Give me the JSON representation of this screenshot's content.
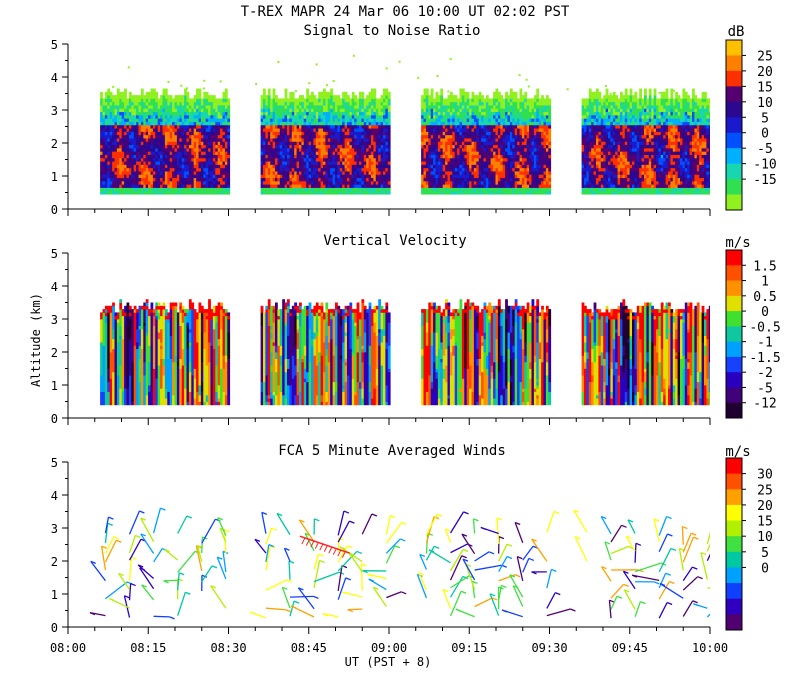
{
  "figure": {
    "title": "T-REX   MAPR 24 Mar 06   10:00 UT   02:02   PST",
    "xlabel": "UT  (PST + 8)",
    "ylabel": "Altitude (km)"
  },
  "chart_data": [
    {
      "type": "heatmap",
      "title": "Signal to Noise Ratio",
      "units": "dB",
      "x_ticks": [
        "08:00",
        "08:15",
        "08:30",
        "08:45",
        "09:00",
        "09:15",
        "09:30",
        "09:45",
        "10:00"
      ],
      "xlim": [
        "08:00",
        "10:00"
      ],
      "y_ticks": [
        0,
        1,
        2,
        3,
        4,
        5
      ],
      "ylim": [
        0,
        5
      ],
      "data_gaps": [
        [
          "08:30",
          "08:34"
        ],
        [
          "09:00",
          "09:04"
        ],
        [
          "09:30",
          "09:34"
        ]
      ],
      "colorbar": {
        "labels": [
          "25",
          "20",
          "15",
          "10",
          "5",
          "0",
          "-5",
          "-10",
          "-15"
        ],
        "colors": [
          "#ffc000",
          "#ff8000",
          "#ff3000",
          "#550070",
          "#2a0890",
          "#1a1acc",
          "#0050ff",
          "#00b0ff",
          "#18d6b0",
          "#30e050",
          "#90f020"
        ]
      },
      "layers": [
        {
          "description": "mean signal top",
          "value_db": -15,
          "top_km": 3.5
        },
        {
          "description": "strong echo core",
          "value_db": 10,
          "altitude_range_km": [
            0.5,
            2.5
          ]
        }
      ]
    },
    {
      "type": "heatmap",
      "title": "Vertical Velocity",
      "units": "m/s",
      "x_ticks": [
        "08:00",
        "08:15",
        "08:30",
        "08:45",
        "09:00",
        "09:15",
        "09:30",
        "09:45",
        "10:00"
      ],
      "xlim": [
        "08:00",
        "10:00"
      ],
      "y_ticks": [
        0,
        1,
        2,
        3,
        4,
        5
      ],
      "ylim": [
        0,
        5
      ],
      "colorbar": {
        "labels": [
          "1.5",
          "1",
          "0.5",
          "0",
          "-0.5",
          "-1",
          "-1.5",
          "-2",
          "-5",
          "-12"
        ],
        "colors": [
          "#ff0000",
          "#ff5000",
          "#ff9000",
          "#e0e000",
          "#40e030",
          "#10c8a0",
          "#00a0ff",
          "#1840ff",
          "#2a00c0",
          "#40007a",
          "#200030"
        ]
      },
      "data_top_km": 3.4
    },
    {
      "type": "scatter",
      "title": "FCA 5 Minute Averaged Winds",
      "units": "m/s",
      "x_ticks": [
        "08:00",
        "08:15",
        "08:30",
        "08:45",
        "09:00",
        "09:15",
        "09:30",
        "09:45",
        "10:00"
      ],
      "xlim": [
        "08:00",
        "10:00"
      ],
      "y_ticks": [
        0,
        1,
        2,
        3,
        4,
        5
      ],
      "ylim": [
        0,
        5
      ],
      "colorbar": {
        "labels": [
          "30",
          "25",
          "20",
          "15",
          "10",
          "5",
          "0"
        ],
        "colors": [
          "#ff0000",
          "#ff5000",
          "#ffa000",
          "#ffff00",
          "#b0f000",
          "#40e040",
          "#00c8a0",
          "#00a0ff",
          "#1040ff",
          "#3000c0",
          "#500070"
        ]
      },
      "wind_barb_altitude_range_km": [
        0.2,
        3.2
      ]
    }
  ]
}
